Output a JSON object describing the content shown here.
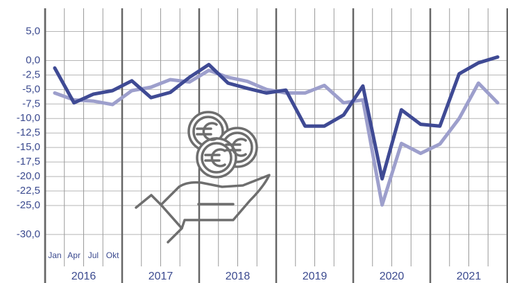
{
  "chart_data": {
    "type": "line",
    "categories": [
      "Jan",
      "Apr",
      "Jul",
      "Okt",
      null,
      null,
      null,
      null,
      null,
      null,
      null,
      null,
      null,
      null,
      null,
      null,
      null,
      null,
      null,
      null,
      null,
      null,
      null,
      null
    ],
    "year_labels": [
      "2016",
      "2017",
      "2018",
      "2019",
      "2020",
      "2021"
    ],
    "series": [
      {
        "color": "#9d9fcc",
        "values": [
          -5.6,
          -6.8,
          -7.0,
          -7.6,
          -5.2,
          -4.6,
          -3.3,
          -3.7,
          -1.7,
          -2.9,
          -3.6,
          -5.0,
          -5.6,
          -5.6,
          -4.3,
          -7.3,
          -6.8,
          -24.9,
          -14.3,
          -16.0,
          -14.4,
          -10.0,
          -3.9,
          -7.3
        ]
      },
      {
        "color": "#3f4a94",
        "values": [
          -1.3,
          -7.3,
          -5.8,
          -5.2,
          -3.5,
          -6.4,
          -5.5,
          -2.9,
          -0.7,
          -3.9,
          -4.8,
          -5.6,
          -5.1,
          -11.3,
          -11.3,
          -9.4,
          -4.4,
          -20.4,
          -8.5,
          -11.0,
          -11.3,
          -2.3,
          -0.4,
          0.6
        ]
      }
    ],
    "ylim": [
      -35.5,
      9
    ],
    "yticks": [
      {
        "value": 5,
        "label": "5,0"
      },
      {
        "value": 0,
        "label": "0,0"
      },
      {
        "value": -2.5,
        "label": "-2,5"
      },
      {
        "value": -5,
        "label": "-5,0"
      },
      {
        "value": -7.5,
        "label": "-7,5"
      },
      {
        "value": -10,
        "label": "-10,0"
      },
      {
        "value": -12.5,
        "label": "-12,5"
      },
      {
        "value": -15,
        "label": "-15,0"
      },
      {
        "value": -17.5,
        "label": "-17,5"
      },
      {
        "value": -20,
        "label": "-20,0"
      },
      {
        "value": -22.5,
        "label": "-22,5"
      },
      {
        "value": -25,
        "label": "-25,0"
      },
      {
        "value": -30,
        "label": "-30,0"
      }
    ],
    "grid": true
  }
}
